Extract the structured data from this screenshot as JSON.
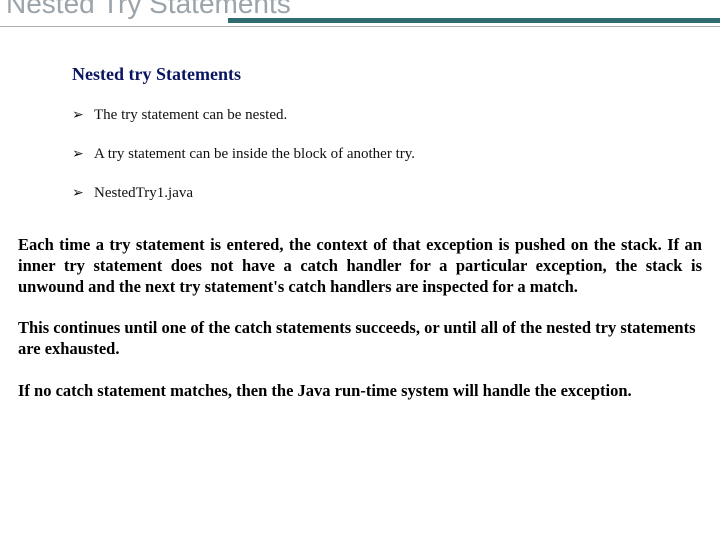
{
  "slide": {
    "title": "Nested Try Statements",
    "title_color": "#9aa4aa",
    "accent_color": "#2f6b70",
    "inner_heading": "Nested try Statements",
    "inner_heading_color": "#0a1560",
    "bullets": [
      "The try statement can be nested.",
      "A try statement can be inside the block of another try.",
      "NestedTry1.java"
    ],
    "paragraphs": [
      "Each time a try statement is entered, the context of that exception is pushed on the stack. If an inner try statement does not have a catch handler for a particular exception, the stack is unwound and the next try statement's catch handlers are inspected for a match.",
      "This continues until one of the catch statements succeeds, or until all of the nested try statements are exhausted.",
      "If no catch statement matches, then the Java run-time system will handle the exception."
    ],
    "background_color": "#ffffff"
  }
}
